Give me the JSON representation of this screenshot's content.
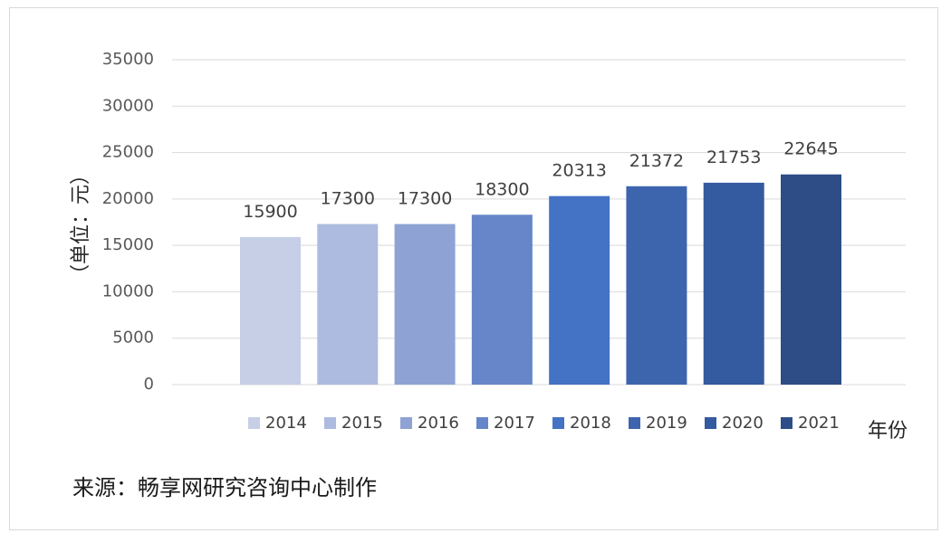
{
  "chart_data": {
    "type": "bar",
    "categories": [
      "2014",
      "2015",
      "2016",
      "2017",
      "2018",
      "2019",
      "2020",
      "2021"
    ],
    "values": [
      15900,
      17300,
      17300,
      18300,
      20313,
      21372,
      21753,
      22645
    ],
    "colors": [
      "#c7cfe7",
      "#aebbe0",
      "#8ea3d4",
      "#6686c9",
      "#4472c4",
      "#3d65ae",
      "#345a9f",
      "#2e4d87"
    ],
    "ylabel": "（单位：元）",
    "xlabel": "年份",
    "ylim": [
      0,
      35000
    ],
    "yticks": [
      0,
      5000,
      10000,
      15000,
      20000,
      25000,
      30000,
      35000
    ],
    "grid": true,
    "legend": "bottom"
  },
  "source_note": "来源：畅享网研究咨询中心制作"
}
